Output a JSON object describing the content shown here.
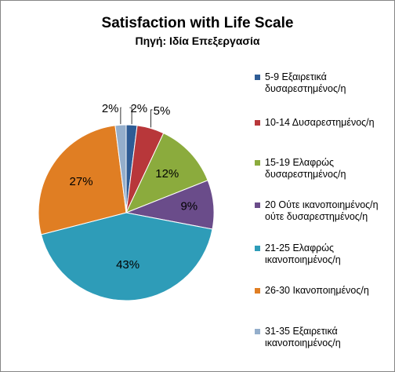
{
  "chart_data": {
    "type": "pie",
    "title": "Satisfaction with Life Scale",
    "subtitle": "Πηγή: Ιδία Επεξεργασία",
    "slices": [
      {
        "label": "5-9 Εξαιρετικά\nδυσαρεστημένος/η",
        "value": 2,
        "data_label": "2%",
        "color": "#2E5C95"
      },
      {
        "label": "10-14 Δυσαρεστημένος/η",
        "value": 5,
        "data_label": "5%",
        "color": "#B8373A"
      },
      {
        "label": "15-19 Ελαφρώς\nδυσαρεστημένος/η",
        "value": 12,
        "data_label": "12%",
        "color": "#8BAB3D"
      },
      {
        "label": "20 Ούτε ικανοποιημένος/η\nούτε δυσαρεστημένος/η",
        "value": 9,
        "data_label": "9%",
        "color": "#6A4C8A"
      },
      {
        "label": "21-25 Ελαφρώς\nικανοποιημένος/η",
        "value": 43,
        "data_label": "43%",
        "color": "#2E9CB8"
      },
      {
        "label": "26-30 Ικανοποιημένος/η",
        "value": 27,
        "data_label": "27%",
        "color": "#E07E23"
      },
      {
        "label": "31-35 Εξαιρετικά\nικανοποιημένος/η",
        "value": 2,
        "data_label": "2%",
        "color": "#94AECB"
      }
    ],
    "legend_position": "right"
  }
}
